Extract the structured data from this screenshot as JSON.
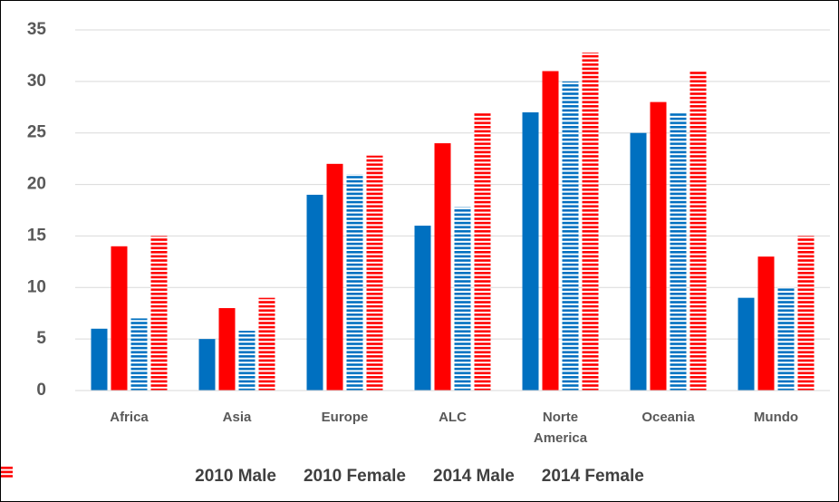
{
  "chart_data": {
    "type": "bar",
    "categories": [
      "Africa",
      "Asia",
      "Europe",
      "ALC",
      "Norte America",
      "Oceania",
      "Mundo"
    ],
    "series": [
      {
        "name": "2010 Male",
        "color": "#0070c0",
        "pattern": "solid",
        "values": [
          6,
          5,
          19,
          16,
          27,
          25,
          9
        ]
      },
      {
        "name": "2010 Female",
        "color": "#ff0000",
        "pattern": "solid",
        "values": [
          14,
          8,
          22,
          24,
          31,
          28,
          13
        ]
      },
      {
        "name": "2014 Male",
        "color": "#0070c0",
        "pattern": "horizontal-stripes",
        "values": [
          7,
          5.8,
          21,
          17.8,
          30,
          27,
          10
        ]
      },
      {
        "name": "2014 Female",
        "color": "#ff0000",
        "pattern": "horizontal-stripes",
        "values": [
          15,
          9,
          22.8,
          27,
          32.8,
          31,
          15
        ]
      }
    ],
    "ylim": [
      0,
      35
    ],
    "yticks": [
      0,
      5,
      10,
      15,
      20,
      25,
      30,
      35
    ],
    "grid": true,
    "legend": "bottom"
  }
}
